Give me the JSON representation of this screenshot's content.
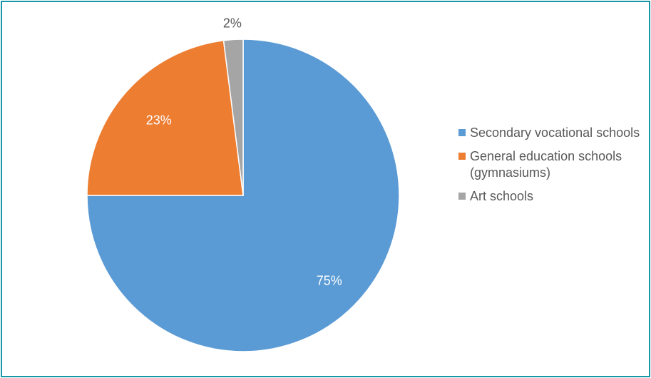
{
  "chart_data": {
    "type": "pie",
    "title": "",
    "slices": [
      {
        "label": "Secondary vocational schools",
        "value": 75,
        "display": "75%",
        "color": "#5b9bd5",
        "label_color": "#ffffff"
      },
      {
        "label": "General education schools (gymnasiums)",
        "value": 23,
        "display": "23%",
        "color": "#ed7d31",
        "label_color": "#ffffff"
      },
      {
        "label": "Art schools",
        "value": 2,
        "display": "2%",
        "color": "#a5a5a5",
        "label_color": "#595959"
      }
    ],
    "legend_position": "right",
    "border_color": "#1597a8"
  }
}
